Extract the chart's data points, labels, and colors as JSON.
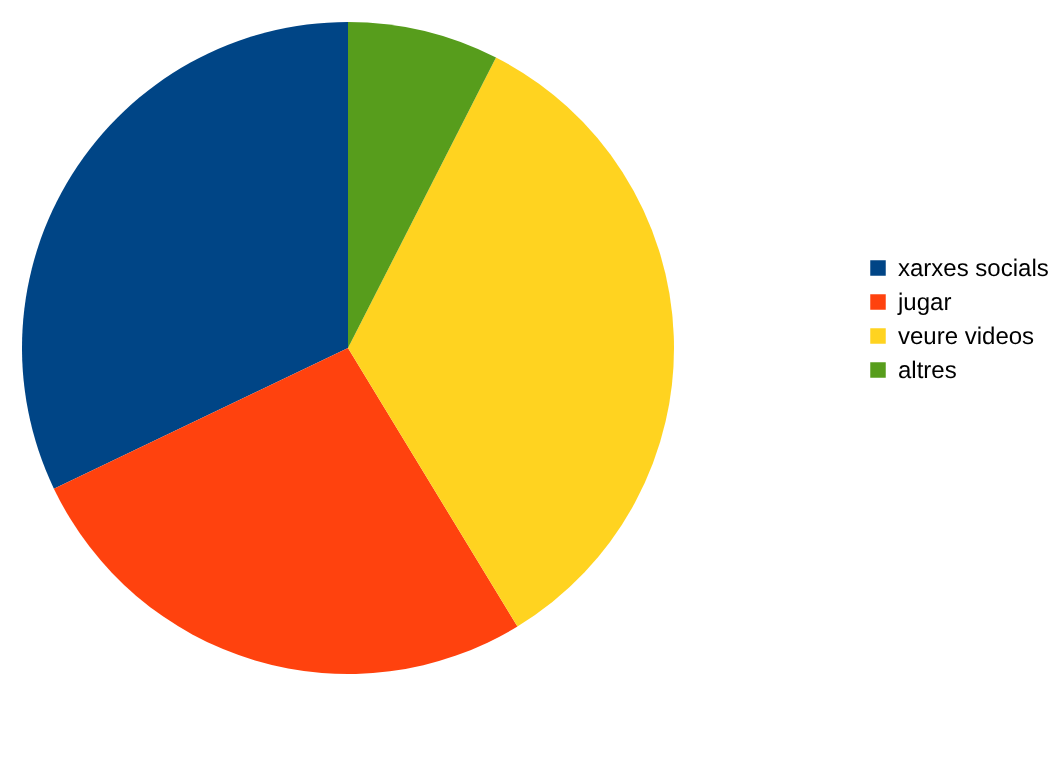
{
  "chart_data": {
    "type": "pie",
    "categories": [
      "xarxes socials",
      "jugar",
      "veure videos",
      "altres"
    ],
    "values": [
      32.1,
      26.6,
      33.8,
      7.5
    ],
    "colors": [
      "#004586",
      "#ff420e",
      "#ffd320",
      "#579d1c"
    ],
    "legend": "right"
  }
}
